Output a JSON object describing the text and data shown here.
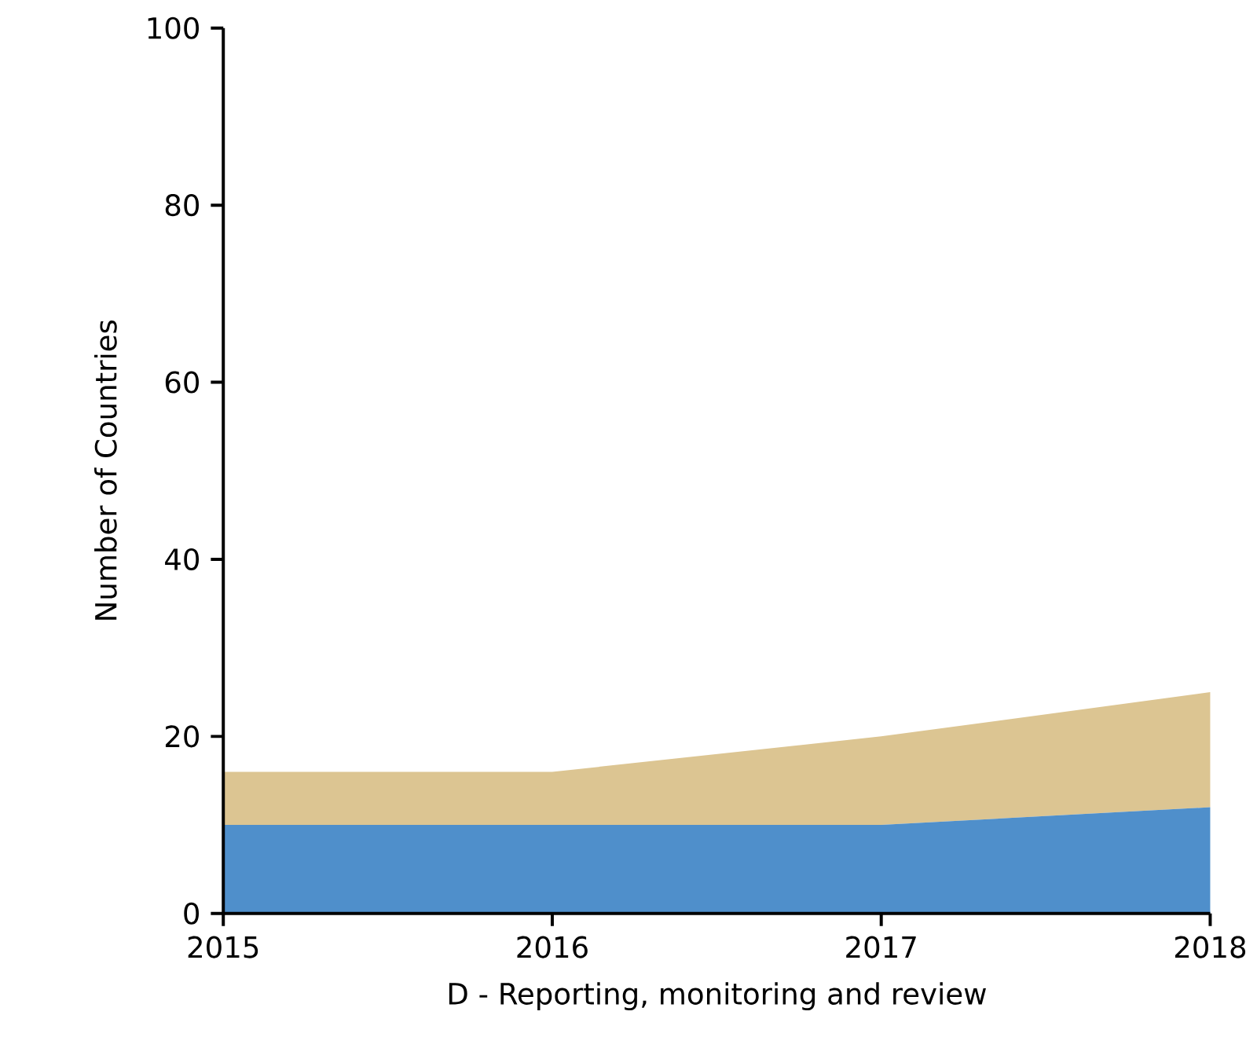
{
  "chart_data": {
    "type": "area",
    "xlabel": "D - Reporting, monitoring and review",
    "ylabel": "Number of Countries",
    "x": [
      2015,
      2016,
      2017,
      2018
    ],
    "xlim": [
      2015,
      2018
    ],
    "xticks": [
      2015,
      2016,
      2017,
      2018
    ],
    "ylim": [
      0,
      100
    ],
    "yticks": [
      0,
      20,
      40,
      60,
      80,
      100
    ],
    "stacked": true,
    "series": [
      {
        "color": "#4f8fcb",
        "values": [
          10,
          10,
          10,
          12
        ]
      },
      {
        "color": "#dcc592",
        "values": [
          6,
          6,
          10,
          13
        ]
      }
    ]
  }
}
